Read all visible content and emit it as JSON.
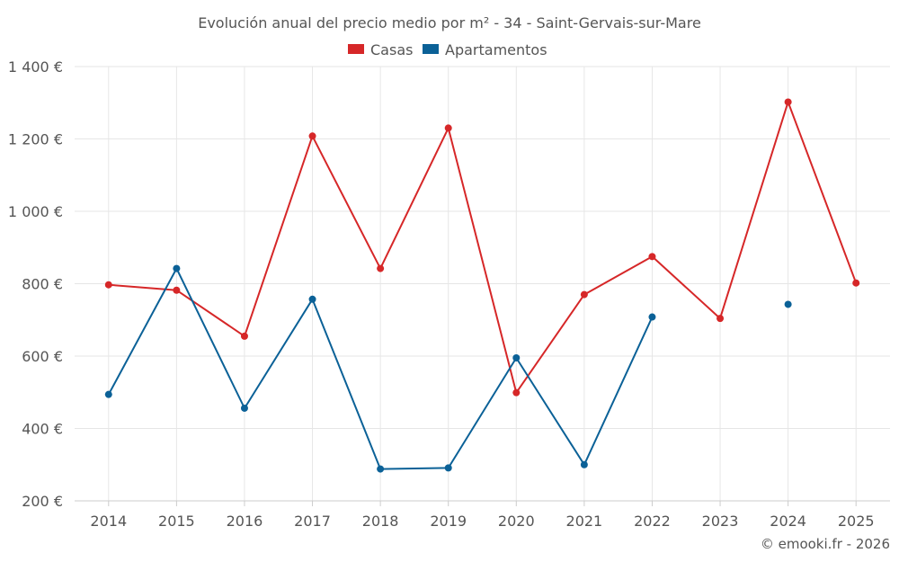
{
  "chart_data": {
    "type": "line",
    "title": "Evolución anual del precio medio por m² - 34 - Saint-Gervais-sur-Mare",
    "categories": [
      "2014",
      "2015",
      "2016",
      "2017",
      "2018",
      "2019",
      "2020",
      "2021",
      "2022",
      "2023",
      "2024",
      "2025"
    ],
    "ylim": [
      200,
      1400
    ],
    "yticks": [
      200,
      400,
      600,
      800,
      1000,
      1200,
      1400
    ],
    "ytick_labels": [
      "200 €",
      "400 €",
      "600 €",
      "800 €",
      "1 000 €",
      "1 200 €",
      "1 400 €"
    ],
    "grid": true,
    "legend_position": "top-center",
    "series": [
      {
        "name": "Casas",
        "color": "#d62728",
        "values": [
          797,
          782,
          655,
          1208,
          842,
          1230,
          499,
          770,
          875,
          704,
          1302,
          802
        ]
      },
      {
        "name": "Apartamentos",
        "color": "#0b6197",
        "values": [
          494,
          842,
          456,
          757,
          288,
          291,
          595,
          300,
          708,
          null,
          743,
          null
        ]
      }
    ],
    "credit": "© emooki.fr - 2026"
  }
}
